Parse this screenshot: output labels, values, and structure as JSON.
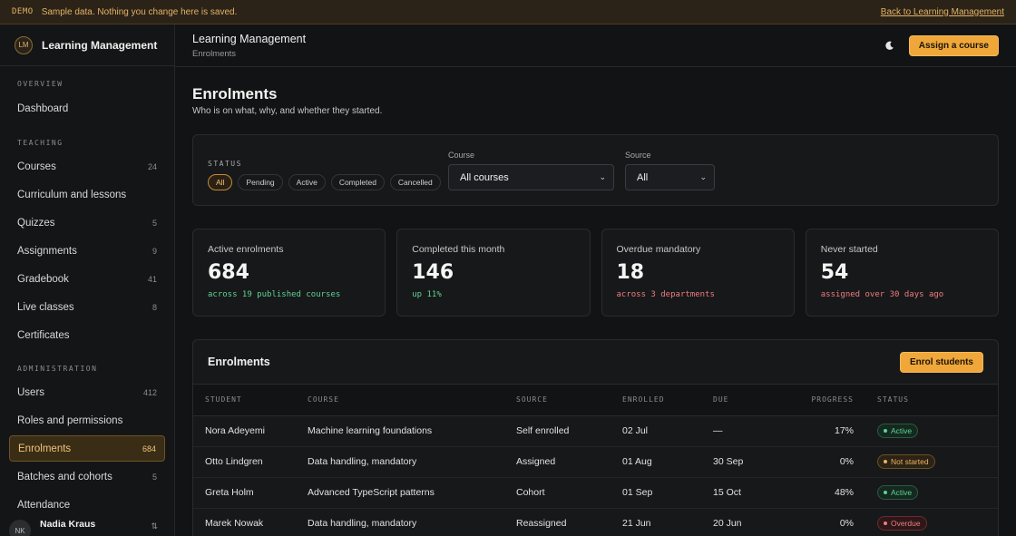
{
  "banner": {
    "tag": "DEMO",
    "message": "Sample data. Nothing you change here is saved.",
    "back_link": "Back to Learning Management"
  },
  "sidebar": {
    "brand": {
      "logo_text": "LM",
      "name": "Learning Management"
    },
    "sections": {
      "overview": {
        "title": "OVERVIEW",
        "items": [
          {
            "label": "Dashboard",
            "count": ""
          }
        ]
      },
      "teaching": {
        "title": "TEACHING",
        "items": [
          {
            "label": "Courses",
            "count": "24"
          },
          {
            "label": "Curriculum and lessons",
            "count": ""
          },
          {
            "label": "Quizzes",
            "count": "5"
          },
          {
            "label": "Assignments",
            "count": "9"
          },
          {
            "label": "Gradebook",
            "count": "41"
          },
          {
            "label": "Live classes",
            "count": "8"
          },
          {
            "label": "Certificates",
            "count": ""
          }
        ]
      },
      "administration": {
        "title": "ADMINISTRATION",
        "items": [
          {
            "label": "Users",
            "count": "412"
          },
          {
            "label": "Roles and permissions",
            "count": ""
          },
          {
            "label": "Enrolments",
            "count": "684"
          },
          {
            "label": "Batches and cohorts",
            "count": "5"
          },
          {
            "label": "Attendance",
            "count": ""
          }
        ]
      }
    },
    "user": {
      "initials": "NK",
      "name": "Nadia Kraus"
    }
  },
  "topbar": {
    "title": "Learning Management",
    "breadcrumb": "Enrolments",
    "theme_icon": "moon-icon",
    "assign_button": "Assign a course"
  },
  "page": {
    "title": "Enrolments",
    "subtitle": "Who is on what, why, and whether they started."
  },
  "filters": {
    "status_label": "STATUS",
    "status_options": [
      "All",
      "Pending",
      "Active",
      "Completed",
      "Cancelled"
    ],
    "status_selected": "All",
    "course_label": "Course",
    "course_value": "All courses",
    "source_label": "Source",
    "source_value": "All"
  },
  "stats": [
    {
      "label": "Active enrolments",
      "value": "684",
      "note": "across 19 published courses",
      "note_color": "#5fd394"
    },
    {
      "label": "Completed this month",
      "value": "146",
      "note": "up 11%",
      "note_color": "#5fd394"
    },
    {
      "label": "Overdue mandatory",
      "value": "18",
      "note": "across 3 departments",
      "note_color": "#ee7c80"
    },
    {
      "label": "Never started",
      "value": "54",
      "note": "assigned over 30 days ago",
      "note_color": "#ee7c80"
    }
  ],
  "enrolments": {
    "title": "Enrolments",
    "enrol_button": "Enrol students",
    "columns": [
      "STUDENT",
      "COURSE",
      "SOURCE",
      "ENROLLED",
      "DUE",
      "PROGRESS",
      "STATUS"
    ],
    "rows": [
      {
        "student": "Nora Adeyemi",
        "course": "Machine learning foundations",
        "source": "Self enrolled",
        "enrolled": "02 Jul",
        "due": "—",
        "progress": "17%",
        "status": "Active"
      },
      {
        "student": "Otto Lindgren",
        "course": "Data handling, mandatory",
        "source": "Assigned",
        "enrolled": "01 Aug",
        "due": "30 Sep",
        "progress": "0%",
        "status": "Not started"
      },
      {
        "student": "Greta Holm",
        "course": "Advanced TypeScript patterns",
        "source": "Cohort",
        "enrolled": "01 Sep",
        "due": "15 Oct",
        "progress": "48%",
        "status": "Active"
      },
      {
        "student": "Marek Nowak",
        "course": "Data handling, mandatory",
        "source": "Reassigned",
        "enrolled": "21 Jun",
        "due": "20 Jun",
        "progress": "0%",
        "status": "Overdue"
      }
    ]
  }
}
